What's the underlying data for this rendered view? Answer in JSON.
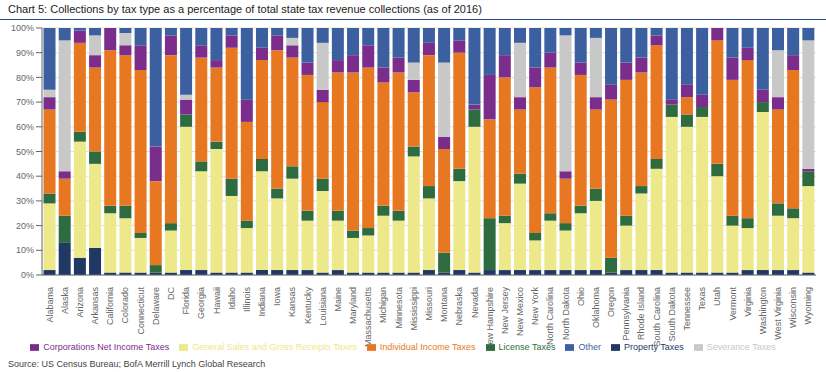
{
  "chart_data": {
    "type": "bar",
    "title": "Chart 5: Collections by tax type as a percentage of total state tax revenue collections (as of 2016)",
    "source": "Source: US Census Bureau; BofA Merrill Lynch Global Research",
    "stacked": true,
    "grid": true,
    "legend": "bottom",
    "categories": [
      "Alabama",
      "Alaska",
      "Arizona",
      "Arkansas",
      "California",
      "Colorado",
      "Connecticut",
      "Delaware",
      "DC",
      "Florida",
      "Georgia",
      "Hawaii",
      "Idaho",
      "Illinois",
      "Indiana",
      "Iowa",
      "Kansas",
      "Kentucky",
      "Louisiana",
      "Maine",
      "Maryland",
      "Massachusetts",
      "Michigan",
      "Minnesota",
      "Mississippi",
      "Missouri",
      "Montana",
      "Nebraska",
      "Nevada",
      "New Hampshire",
      "New Jersey",
      "New Mexico",
      "New York",
      "North Carolina",
      "North Dakota",
      "Ohio",
      "Oklahoma",
      "Oregon",
      "Pennsylvania",
      "Rhode Island",
      "South Carolina",
      "South Dakota",
      "Tennessee",
      "Texas",
      "Utah",
      "Vermont",
      "Virginia",
      "Washington",
      "West Virginia",
      "Wisconsin",
      "Wyoming"
    ],
    "series": [
      {
        "name": "Property Taxes",
        "color": "#1F3864",
        "values": [
          2,
          13,
          7,
          11,
          1,
          1,
          1,
          1,
          1,
          2,
          2,
          1,
          1,
          1,
          2,
          2,
          2,
          2,
          1,
          2,
          1,
          1,
          1,
          1,
          1,
          2,
          1,
          2,
          1,
          2,
          2,
          2,
          2,
          2,
          2,
          2,
          2,
          1,
          2,
          2,
          2,
          1,
          1,
          1,
          1,
          1,
          2,
          2,
          2,
          2,
          1
        ]
      },
      {
        "name": "General Sales and Gross Receipts Taxes",
        "color": "#EDE88A",
        "values": [
          27,
          0,
          47,
          34,
          24,
          22,
          14,
          0,
          17,
          58,
          40,
          50,
          31,
          18,
          40,
          29,
          37,
          20,
          33,
          20,
          14,
          15,
          23,
          21,
          47,
          29,
          0,
          36,
          59,
          0,
          19,
          35,
          12,
          20,
          16,
          23,
          28,
          0,
          18,
          31,
          41,
          63,
          59,
          63,
          39,
          19,
          17,
          64,
          22,
          21,
          35
        ]
      },
      {
        "name": "License Taxes",
        "color": "#2E6B3E",
        "values": [
          4,
          11,
          4,
          5,
          3,
          5,
          2,
          3,
          3,
          5,
          4,
          3,
          7,
          3,
          5,
          4,
          5,
          4,
          5,
          4,
          3,
          3,
          4,
          4,
          4,
          5,
          8,
          5,
          7,
          21,
          3,
          4,
          3,
          3,
          3,
          3,
          5,
          6,
          4,
          3,
          4,
          5,
          5,
          4,
          5,
          4,
          4,
          4,
          5,
          4,
          6
        ]
      },
      {
        "name": "Individual Income Taxes",
        "color": "#E87722",
        "values": [
          34,
          15,
          36,
          34,
          63,
          61,
          66,
          34,
          68,
          0,
          42,
          30,
          53,
          40,
          40,
          56,
          44,
          55,
          31,
          56,
          64,
          65,
          50,
          56,
          22,
          53,
          42,
          47,
          0,
          40,
          56,
          26,
          59,
          59,
          18,
          53,
          32,
          64,
          55,
          46,
          46,
          0,
          7,
          0,
          50,
          55,
          64,
          0,
          38,
          56,
          0
        ]
      },
      {
        "name": "Corporations Net Income Taxes",
        "color": "#7B2D8B",
        "values": [
          5,
          3,
          5,
          5,
          9,
          4,
          10,
          14,
          8,
          6,
          5,
          3,
          5,
          9,
          5,
          6,
          5,
          5,
          5,
          5,
          7,
          9,
          6,
          6,
          5,
          5,
          5,
          5,
          2,
          18,
          9,
          5,
          8,
          6,
          3,
          5,
          5,
          6,
          7,
          6,
          4,
          2,
          5,
          5,
          5,
          9,
          5,
          5,
          5,
          6,
          1
        ]
      },
      {
        "name": "Severance Taxes",
        "color": "#C8C8C8",
        "values": [
          3,
          53,
          0,
          8,
          0,
          5,
          0,
          0,
          0,
          2,
          0,
          0,
          0,
          0,
          0,
          0,
          3,
          0,
          19,
          0,
          0,
          0,
          0,
          0,
          7,
          0,
          30,
          0,
          0,
          0,
          0,
          22,
          0,
          0,
          55,
          0,
          24,
          0,
          0,
          0,
          0,
          0,
          0,
          0,
          0,
          0,
          0,
          0,
          19,
          0,
          52
        ]
      },
      {
        "name": "Other",
        "color": "#3C5FA0",
        "values": [
          25,
          5,
          1,
          3,
          0,
          2,
          7,
          48,
          3,
          27,
          7,
          13,
          3,
          29,
          8,
          3,
          4,
          14,
          6,
          13,
          11,
          7,
          16,
          12,
          14,
          6,
          14,
          5,
          31,
          19,
          11,
          6,
          16,
          10,
          3,
          14,
          4,
          23,
          14,
          12,
          3,
          29,
          23,
          27,
          0,
          12,
          8,
          25,
          9,
          11,
          5
        ]
      }
    ],
    "ylim": [
      0,
      100
    ],
    "yticks": [
      {
        "value": 0,
        "label": "0%"
      },
      {
        "value": 10,
        "label": "10%"
      },
      {
        "value": 20,
        "label": "20%"
      },
      {
        "value": 30,
        "label": "30%"
      },
      {
        "value": 40,
        "label": "40%"
      },
      {
        "value": 50,
        "label": "50%"
      },
      {
        "value": 60,
        "label": "60%"
      },
      {
        "value": 70,
        "label": "70%"
      },
      {
        "value": 80,
        "label": "80%"
      },
      {
        "value": 90,
        "label": "90%"
      },
      {
        "value": 100,
        "label": "100%"
      }
    ]
  }
}
